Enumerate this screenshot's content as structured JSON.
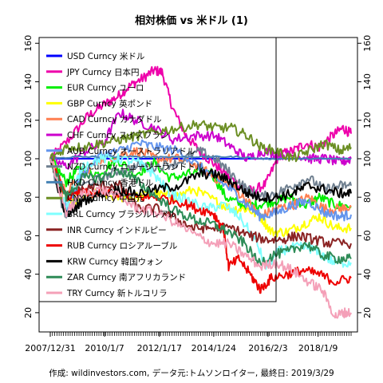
{
  "chart_data": {
    "type": "line",
    "title": "相対株価 vs 米ドル (1)",
    "xlabel": "",
    "ylabel": "",
    "x_tick_labels": [
      "2007/12/31",
      "2010/1/7",
      "2012/1/17",
      "2014/1/24",
      "2016/2/3",
      "2018/1/9"
    ],
    "x_tick_index": [
      0,
      1.02,
      2.05,
      3.07,
      4.09,
      5.03
    ],
    "x_range": [
      0,
      5.65
    ],
    "y_ticks": [
      20,
      40,
      60,
      80,
      100,
      120,
      140,
      160
    ],
    "ylim": [
      10,
      163
    ],
    "y_axis_both_sides": true,
    "grid": false,
    "legend_position": "top-left",
    "baseline": 100,
    "series": [
      {
        "name": "USD Curncy 米ドル",
        "color": "#0000ff",
        "points": [
          [
            0,
            100
          ],
          [
            5.65,
            100
          ]
        ]
      },
      {
        "name": "JPY Curncy 日本円",
        "color": "#ee00aa",
        "points": [
          [
            0,
            100
          ],
          [
            0.35,
            110
          ],
          [
            0.7,
            122
          ],
          [
            1.0,
            128
          ],
          [
            1.25,
            132
          ],
          [
            1.5,
            138
          ],
          [
            1.75,
            142
          ],
          [
            1.95,
            146
          ],
          [
            2.1,
            145
          ],
          [
            2.3,
            126
          ],
          [
            2.55,
            112
          ],
          [
            2.8,
            104
          ],
          [
            3.05,
            98
          ],
          [
            3.3,
            92
          ],
          [
            3.55,
            86
          ],
          [
            3.8,
            83
          ],
          [
            4.05,
            87
          ],
          [
            4.3,
            102
          ],
          [
            4.55,
            104
          ],
          [
            4.8,
            108
          ],
          [
            5.05,
            106
          ],
          [
            5.3,
            112
          ],
          [
            5.5,
            116
          ],
          [
            5.65,
            113
          ]
        ]
      },
      {
        "name": "EUR Curncy ユーロ",
        "color": "#00ee00",
        "points": [
          [
            0,
            100
          ],
          [
            0.3,
            88
          ],
          [
            0.55,
            95
          ],
          [
            0.9,
            92
          ],
          [
            1.25,
            100
          ],
          [
            1.6,
            92
          ],
          [
            1.95,
            98
          ],
          [
            2.25,
            90
          ],
          [
            2.6,
            92
          ],
          [
            3.0,
            94
          ],
          [
            3.3,
            80
          ],
          [
            3.6,
            76
          ],
          [
            3.9,
            76
          ],
          [
            4.2,
            78
          ],
          [
            4.5,
            80
          ],
          [
            4.8,
            76
          ],
          [
            5.05,
            80
          ],
          [
            5.35,
            76
          ],
          [
            5.65,
            75
          ]
        ]
      },
      {
        "name": "GBP Curncy 英ポンド",
        "color": "#ffff00",
        "points": [
          [
            0,
            100
          ],
          [
            0.3,
            76
          ],
          [
            0.55,
            80
          ],
          [
            0.9,
            82
          ],
          [
            1.25,
            80
          ],
          [
            1.6,
            80
          ],
          [
            1.95,
            82
          ],
          [
            2.3,
            80
          ],
          [
            2.7,
            84
          ],
          [
            3.1,
            78
          ],
          [
            3.4,
            74
          ],
          [
            3.7,
            74
          ],
          [
            3.95,
            70
          ],
          [
            4.15,
            62
          ],
          [
            4.45,
            62
          ],
          [
            4.75,
            66
          ],
          [
            5.05,
            70
          ],
          [
            5.35,
            64
          ],
          [
            5.65,
            64
          ]
        ]
      },
      {
        "name": "CAD Curncy カナダドル",
        "color": "#ff7f50",
        "points": [
          [
            0,
            100
          ],
          [
            0.3,
            82
          ],
          [
            0.6,
            92
          ],
          [
            0.95,
            100
          ],
          [
            1.3,
            102
          ],
          [
            1.65,
            104
          ],
          [
            2.0,
            100
          ],
          [
            2.4,
            100
          ],
          [
            2.8,
            96
          ],
          [
            3.1,
            90
          ],
          [
            3.4,
            86
          ],
          [
            3.7,
            78
          ],
          [
            3.95,
            70
          ],
          [
            4.25,
            74
          ],
          [
            4.55,
            76
          ],
          [
            4.85,
            80
          ],
          [
            5.15,
            74
          ],
          [
            5.45,
            74
          ],
          [
            5.65,
            75
          ]
        ]
      },
      {
        "name": "CHF Curncy スイスフラン",
        "color": "#cc00cc",
        "points": [
          [
            0,
            100
          ],
          [
            0.3,
            96
          ],
          [
            0.65,
            104
          ],
          [
            1.0,
            108
          ],
          [
            1.3,
            124
          ],
          [
            1.6,
            120
          ],
          [
            1.95,
            116
          ],
          [
            2.3,
            110
          ],
          [
            2.7,
            112
          ],
          [
            3.1,
            112
          ],
          [
            3.4,
            106
          ],
          [
            3.7,
            100
          ],
          [
            4.0,
            104
          ],
          [
            4.3,
            102
          ],
          [
            4.6,
            102
          ],
          [
            4.9,
            100
          ],
          [
            5.2,
            100
          ],
          [
            5.45,
            98
          ],
          [
            5.65,
            100
          ]
        ]
      },
      {
        "name": "AUD Curncy オーストラリアドル",
        "color": "#6495ed",
        "points": [
          [
            0,
            100
          ],
          [
            0.3,
            74
          ],
          [
            0.6,
            92
          ],
          [
            0.95,
            102
          ],
          [
            1.3,
            104
          ],
          [
            1.65,
            108
          ],
          [
            2.0,
            106
          ],
          [
            2.4,
            104
          ],
          [
            2.8,
            96
          ],
          [
            3.1,
            90
          ],
          [
            3.4,
            84
          ],
          [
            3.7,
            76
          ],
          [
            3.95,
            70
          ],
          [
            4.25,
            72
          ],
          [
            4.55,
            76
          ],
          [
            4.85,
            78
          ],
          [
            5.15,
            72
          ],
          [
            5.45,
            70
          ],
          [
            5.65,
            71
          ]
        ]
      },
      {
        "name": "NZD Curncy ニュージーランドドル",
        "color": "#708090",
        "points": [
          [
            0,
            100
          ],
          [
            0.3,
            68
          ],
          [
            0.6,
            86
          ],
          [
            0.95,
            90
          ],
          [
            1.3,
            94
          ],
          [
            1.65,
            96
          ],
          [
            2.0,
            96
          ],
          [
            2.4,
            98
          ],
          [
            2.8,
            104
          ],
          [
            3.1,
            100
          ],
          [
            3.4,
            92
          ],
          [
            3.7,
            84
          ],
          [
            3.95,
            80
          ],
          [
            4.25,
            82
          ],
          [
            4.55,
            86
          ],
          [
            4.85,
            90
          ],
          [
            5.15,
            84
          ],
          [
            5.45,
            86
          ],
          [
            5.65,
            86
          ]
        ]
      },
      {
        "name": "HKD Curncy 香港ドル",
        "color": "#4682b4",
        "points": [
          [
            0,
            100
          ],
          [
            0.5,
            101
          ],
          [
            1.0,
            101
          ],
          [
            1.5,
            101
          ],
          [
            2.0,
            101
          ],
          [
            2.5,
            101
          ],
          [
            3.0,
            101
          ],
          [
            3.5,
            101
          ],
          [
            4.0,
            100
          ],
          [
            4.5,
            100
          ],
          [
            5.0,
            100
          ],
          [
            5.65,
            100
          ]
        ]
      },
      {
        "name": "CNY Curncy 中国元",
        "color": "#6b8e23",
        "points": [
          [
            0,
            100
          ],
          [
            0.3,
            106
          ],
          [
            0.6,
            106
          ],
          [
            0.95,
            108
          ],
          [
            1.3,
            110
          ],
          [
            1.65,
            112
          ],
          [
            2.0,
            114
          ],
          [
            2.4,
            116
          ],
          [
            2.8,
            118
          ],
          [
            3.1,
            116
          ],
          [
            3.4,
            116
          ],
          [
            3.7,
            112
          ],
          [
            3.95,
            106
          ],
          [
            4.25,
            104
          ],
          [
            4.55,
            100
          ],
          [
            4.85,
            104
          ],
          [
            5.15,
            108
          ],
          [
            5.45,
            104
          ],
          [
            5.65,
            106
          ]
        ]
      },
      {
        "name": "BRL Curncy ブラジルレアル",
        "color": "#7fffff",
        "points": [
          [
            0,
            100
          ],
          [
            0.3,
            74
          ],
          [
            0.6,
            96
          ],
          [
            0.95,
            100
          ],
          [
            1.3,
            100
          ],
          [
            1.65,
            98
          ],
          [
            1.95,
            92
          ],
          [
            2.25,
            82
          ],
          [
            2.6,
            78
          ],
          [
            2.95,
            74
          ],
          [
            3.25,
            76
          ],
          [
            3.55,
            70
          ],
          [
            3.85,
            58
          ],
          [
            4.05,
            44
          ],
          [
            4.3,
            52
          ],
          [
            4.6,
            54
          ],
          [
            4.85,
            54
          ],
          [
            5.1,
            50
          ],
          [
            5.35,
            46
          ],
          [
            5.65,
            46
          ]
        ]
      },
      {
        "name": "INR Curncy インドルピー",
        "color": "#8b2323",
        "points": [
          [
            0,
            100
          ],
          [
            0.3,
            80
          ],
          [
            0.6,
            84
          ],
          [
            0.95,
            86
          ],
          [
            1.3,
            86
          ],
          [
            1.65,
            74
          ],
          [
            2.0,
            74
          ],
          [
            2.4,
            68
          ],
          [
            2.7,
            64
          ],
          [
            3.0,
            64
          ],
          [
            3.4,
            64
          ],
          [
            3.75,
            60
          ],
          [
            4.05,
            58
          ],
          [
            4.35,
            58
          ],
          [
            4.65,
            60
          ],
          [
            4.95,
            58
          ],
          [
            5.25,
            56
          ],
          [
            5.65,
            56
          ]
        ]
      },
      {
        "name": "RUB Curncy ロシアルーブル",
        "color": "#ee0000",
        "points": [
          [
            0,
            100
          ],
          [
            0.3,
            80
          ],
          [
            0.6,
            82
          ],
          [
            0.95,
            82
          ],
          [
            1.3,
            82
          ],
          [
            1.65,
            80
          ],
          [
            2.0,
            80
          ],
          [
            2.4,
            78
          ],
          [
            2.75,
            74
          ],
          [
            3.05,
            72
          ],
          [
            3.25,
            64
          ],
          [
            3.35,
            44
          ],
          [
            3.55,
            48
          ],
          [
            3.8,
            38
          ],
          [
            3.95,
            32
          ],
          [
            4.15,
            38
          ],
          [
            4.45,
            40
          ],
          [
            4.75,
            42
          ],
          [
            5.05,
            40
          ],
          [
            5.35,
            36
          ],
          [
            5.65,
            38
          ]
        ]
      },
      {
        "name": "KRW Curncy 韓国ウォン",
        "color": "#000000",
        "points": [
          [
            0,
            100
          ],
          [
            0.3,
            70
          ],
          [
            0.6,
            78
          ],
          [
            0.95,
            82
          ],
          [
            1.3,
            84
          ],
          [
            1.65,
            82
          ],
          [
            2.0,
            84
          ],
          [
            2.4,
            86
          ],
          [
            2.8,
            92
          ],
          [
            3.1,
            92
          ],
          [
            3.4,
            88
          ],
          [
            3.7,
            82
          ],
          [
            3.95,
            80
          ],
          [
            4.25,
            80
          ],
          [
            4.55,
            82
          ],
          [
            4.85,
            86
          ],
          [
            5.15,
            84
          ],
          [
            5.45,
            82
          ],
          [
            5.65,
            82
          ]
        ]
      },
      {
        "name": "ZAR Curncy 南アフリカランド",
        "color": "#2e8b57",
        "points": [
          [
            0,
            100
          ],
          [
            0.3,
            80
          ],
          [
            0.6,
            90
          ],
          [
            0.95,
            90
          ],
          [
            1.3,
            94
          ],
          [
            1.65,
            88
          ],
          [
            2.0,
            80
          ],
          [
            2.4,
            72
          ],
          [
            2.75,
            68
          ],
          [
            3.05,
            66
          ],
          [
            3.35,
            62
          ],
          [
            3.65,
            56
          ],
          [
            3.9,
            46
          ],
          [
            4.2,
            50
          ],
          [
            4.5,
            52
          ],
          [
            4.8,
            56
          ],
          [
            5.1,
            50
          ],
          [
            5.4,
            48
          ],
          [
            5.65,
            48
          ]
        ]
      },
      {
        "name": "TRY Curncy 新トルコリラ",
        "color": "#f4a0b8",
        "points": [
          [
            0,
            100
          ],
          [
            0.3,
            72
          ],
          [
            0.6,
            82
          ],
          [
            0.95,
            84
          ],
          [
            1.3,
            80
          ],
          [
            1.65,
            74
          ],
          [
            2.0,
            72
          ],
          [
            2.4,
            66
          ],
          [
            2.75,
            60
          ],
          [
            3.05,
            56
          ],
          [
            3.35,
            56
          ],
          [
            3.65,
            50
          ],
          [
            3.95,
            44
          ],
          [
            4.25,
            46
          ],
          [
            4.55,
            42
          ],
          [
            4.85,
            36
          ],
          [
            5.1,
            32
          ],
          [
            5.35,
            18
          ],
          [
            5.5,
            20
          ],
          [
            5.65,
            20
          ]
        ]
      }
    ]
  },
  "caption": "作成: wildinvestors.com, データ元:トムソンロイター, 最終日: 2019/3/29"
}
